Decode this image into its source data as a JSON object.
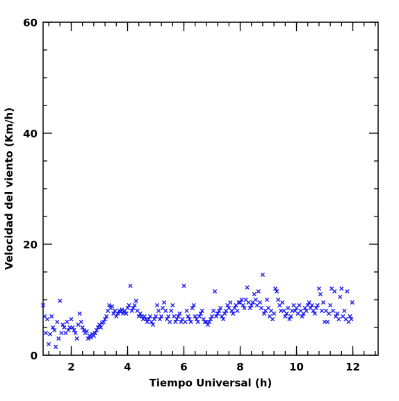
{
  "chart_data": {
    "type": "scatter",
    "title": "",
    "xlabel": "Tiempo Universal (h)",
    "ylabel": "Velocidad del viento (Km/h)",
    "xlim": [
      1.0,
      12.9
    ],
    "ylim": [
      0,
      60
    ],
    "x_ticks": [
      2,
      4,
      6,
      8,
      10,
      12
    ],
    "y_ticks": [
      0,
      20,
      40,
      60
    ],
    "x_minor_step": 0.4,
    "y_minor_step": 5,
    "grid": false,
    "legend": "none",
    "marker": "x",
    "color": "#1f1ff0",
    "series": [
      {
        "points": [
          [
            1.0,
            9.0
          ],
          [
            1.05,
            7.0
          ],
          [
            1.1,
            4.0
          ],
          [
            1.15,
            6.5
          ],
          [
            1.2,
            2.0
          ],
          [
            1.25,
            3.8
          ],
          [
            1.3,
            7.0
          ],
          [
            1.35,
            5.0
          ],
          [
            1.4,
            4.5
          ],
          [
            1.45,
            1.5
          ],
          [
            1.5,
            6.0
          ],
          [
            1.55,
            3.0
          ],
          [
            1.6,
            9.8
          ],
          [
            1.65,
            4.0
          ],
          [
            1.7,
            5.5
          ],
          [
            1.75,
            5.0
          ],
          [
            1.8,
            4.0
          ],
          [
            1.85,
            6.0
          ],
          [
            1.9,
            4.5
          ],
          [
            1.95,
            5.0
          ],
          [
            2.0,
            6.5
          ],
          [
            2.05,
            5.0
          ],
          [
            2.1,
            4.5
          ],
          [
            2.15,
            4.0
          ],
          [
            2.2,
            3.0
          ],
          [
            2.25,
            5.5
          ],
          [
            2.3,
            7.5
          ],
          [
            2.35,
            6.0
          ],
          [
            2.4,
            5.0
          ],
          [
            2.45,
            4.5
          ],
          [
            2.5,
            4.0
          ],
          [
            2.55,
            4.3
          ],
          [
            2.6,
            3.0
          ],
          [
            2.65,
            3.5
          ],
          [
            2.7,
            3.2
          ],
          [
            2.75,
            3.8
          ],
          [
            2.8,
            3.5
          ],
          [
            2.85,
            4.0
          ],
          [
            2.9,
            4.5
          ],
          [
            2.95,
            5.0
          ],
          [
            3.0,
            5.5
          ],
          [
            3.05,
            5.0
          ],
          [
            3.1,
            5.8
          ],
          [
            3.15,
            6.0
          ],
          [
            3.2,
            6.5
          ],
          [
            3.25,
            7.0
          ],
          [
            3.3,
            8.0
          ],
          [
            3.35,
            9.0
          ],
          [
            3.4,
            8.5
          ],
          [
            3.45,
            8.8
          ],
          [
            3.5,
            7.5
          ],
          [
            3.55,
            8.0
          ],
          [
            3.6,
            7.0
          ],
          [
            3.65,
            7.5
          ],
          [
            3.7,
            8.0
          ],
          [
            3.75,
            7.8
          ],
          [
            3.8,
            8.2
          ],
          [
            3.85,
            7.5
          ],
          [
            3.9,
            8.0
          ],
          [
            3.95,
            7.5
          ],
          [
            4.0,
            8.5
          ],
          [
            4.05,
            9.0
          ],
          [
            4.1,
            12.5
          ],
          [
            4.15,
            8.0
          ],
          [
            4.2,
            8.5
          ],
          [
            4.25,
            9.0
          ],
          [
            4.3,
            9.8
          ],
          [
            4.35,
            8.0
          ],
          [
            4.4,
            7.0
          ],
          [
            4.45,
            7.5
          ],
          [
            4.5,
            7.0
          ],
          [
            4.55,
            6.5
          ],
          [
            4.6,
            7.0
          ],
          [
            4.65,
            6.5
          ],
          [
            4.7,
            6.0
          ],
          [
            4.75,
            6.5
          ],
          [
            4.8,
            7.0
          ],
          [
            4.85,
            6.0
          ],
          [
            4.9,
            5.5
          ],
          [
            4.95,
            6.5
          ],
          [
            5.0,
            7.0
          ],
          [
            5.05,
            9.0
          ],
          [
            5.1,
            8.0
          ],
          [
            5.15,
            6.5
          ],
          [
            5.2,
            7.0
          ],
          [
            5.25,
            8.5
          ],
          [
            5.3,
            9.5
          ],
          [
            5.35,
            8.0
          ],
          [
            5.4,
            6.5
          ],
          [
            5.45,
            7.0
          ],
          [
            5.5,
            6.0
          ],
          [
            5.55,
            8.0
          ],
          [
            5.6,
            9.0
          ],
          [
            5.65,
            7.0
          ],
          [
            5.7,
            6.0
          ],
          [
            5.75,
            6.5
          ],
          [
            5.8,
            7.0
          ],
          [
            5.85,
            7.5
          ],
          [
            5.9,
            6.0
          ],
          [
            5.95,
            6.5
          ],
          [
            6.0,
            12.5
          ],
          [
            6.05,
            6.0
          ],
          [
            6.1,
            8.0
          ],
          [
            6.15,
            7.0
          ],
          [
            6.2,
            6.5
          ],
          [
            6.25,
            6.0
          ],
          [
            6.3,
            8.5
          ],
          [
            6.35,
            9.0
          ],
          [
            6.4,
            7.0
          ],
          [
            6.45,
            6.5
          ],
          [
            6.5,
            6.0
          ],
          [
            6.55,
            7.0
          ],
          [
            6.6,
            7.5
          ],
          [
            6.65,
            8.0
          ],
          [
            6.7,
            6.5
          ],
          [
            6.75,
            6.0
          ],
          [
            6.8,
            6.0
          ],
          [
            6.85,
            5.5
          ],
          [
            6.9,
            6.0
          ],
          [
            6.95,
            6.5
          ],
          [
            7.0,
            7.0
          ],
          [
            7.05,
            8.0
          ],
          [
            7.1,
            11.5
          ],
          [
            7.15,
            7.0
          ],
          [
            7.2,
            7.5
          ],
          [
            7.25,
            8.0
          ],
          [
            7.3,
            8.5
          ],
          [
            7.35,
            7.0
          ],
          [
            7.4,
            6.5
          ],
          [
            7.45,
            7.5
          ],
          [
            7.5,
            8.0
          ],
          [
            7.55,
            9.0
          ],
          [
            7.6,
            8.5
          ],
          [
            7.65,
            9.5
          ],
          [
            7.7,
            8.0
          ],
          [
            7.75,
            7.5
          ],
          [
            7.8,
            8.5
          ],
          [
            7.85,
            9.0
          ],
          [
            7.9,
            8.0
          ],
          [
            7.95,
            9.5
          ],
          [
            8.0,
            9.5
          ],
          [
            8.05,
            10.0
          ],
          [
            8.1,
            9.0
          ],
          [
            8.15,
            8.5
          ],
          [
            8.2,
            10.0
          ],
          [
            8.25,
            12.2
          ],
          [
            8.3,
            9.5
          ],
          [
            8.35,
            8.5
          ],
          [
            8.4,
            9.0
          ],
          [
            8.45,
            9.5
          ],
          [
            8.5,
            11.0
          ],
          [
            8.55,
            10.0
          ],
          [
            8.6,
            9.0
          ],
          [
            8.65,
            11.5
          ],
          [
            8.7,
            9.5
          ],
          [
            8.75,
            8.5
          ],
          [
            8.8,
            14.5
          ],
          [
            8.85,
            7.5
          ],
          [
            8.9,
            8.0
          ],
          [
            8.95,
            10.0
          ],
          [
            9.0,
            8.5
          ],
          [
            9.05,
            7.0
          ],
          [
            9.1,
            8.0
          ],
          [
            9.15,
            6.5
          ],
          [
            9.2,
            7.5
          ],
          [
            9.25,
            12.0
          ],
          [
            9.3,
            11.5
          ],
          [
            9.35,
            10.0
          ],
          [
            9.4,
            9.0
          ],
          [
            9.45,
            8.0
          ],
          [
            9.5,
            9.5
          ],
          [
            9.55,
            8.0
          ],
          [
            9.6,
            7.0
          ],
          [
            9.65,
            7.5
          ],
          [
            9.7,
            8.5
          ],
          [
            9.75,
            6.5
          ],
          [
            9.8,
            7.0
          ],
          [
            9.85,
            8.0
          ],
          [
            9.9,
            9.0
          ],
          [
            9.95,
            8.0
          ],
          [
            10.0,
            8.5
          ],
          [
            10.05,
            7.5
          ],
          [
            10.1,
            9.0
          ],
          [
            10.15,
            8.0
          ],
          [
            10.2,
            7.0
          ],
          [
            10.25,
            7.5
          ],
          [
            10.3,
            8.5
          ],
          [
            10.35,
            8.0
          ],
          [
            10.4,
            9.0
          ],
          [
            10.45,
            9.5
          ],
          [
            10.5,
            8.5
          ],
          [
            10.55,
            9.0
          ],
          [
            10.6,
            8.0
          ],
          [
            10.65,
            7.5
          ],
          [
            10.7,
            8.5
          ],
          [
            10.75,
            9.0
          ],
          [
            10.8,
            12.0
          ],
          [
            10.85,
            11.0
          ],
          [
            10.9,
            8.0
          ],
          [
            10.95,
            9.5
          ],
          [
            11.0,
            6.0
          ],
          [
            11.05,
            8.0
          ],
          [
            11.1,
            6.0
          ],
          [
            11.15,
            7.5
          ],
          [
            11.2,
            9.0
          ],
          [
            11.25,
            12.0
          ],
          [
            11.3,
            8.0
          ],
          [
            11.35,
            11.5
          ],
          [
            11.4,
            7.0
          ],
          [
            11.45,
            7.5
          ],
          [
            11.5,
            6.5
          ],
          [
            11.55,
            10.5
          ],
          [
            11.6,
            12.0
          ],
          [
            11.65,
            7.0
          ],
          [
            11.7,
            8.0
          ],
          [
            11.75,
            6.5
          ],
          [
            11.8,
            11.5
          ],
          [
            11.85,
            6.0
          ],
          [
            11.9,
            7.0
          ],
          [
            11.95,
            6.5
          ],
          [
            11.98,
            9.5
          ]
        ]
      }
    ]
  }
}
